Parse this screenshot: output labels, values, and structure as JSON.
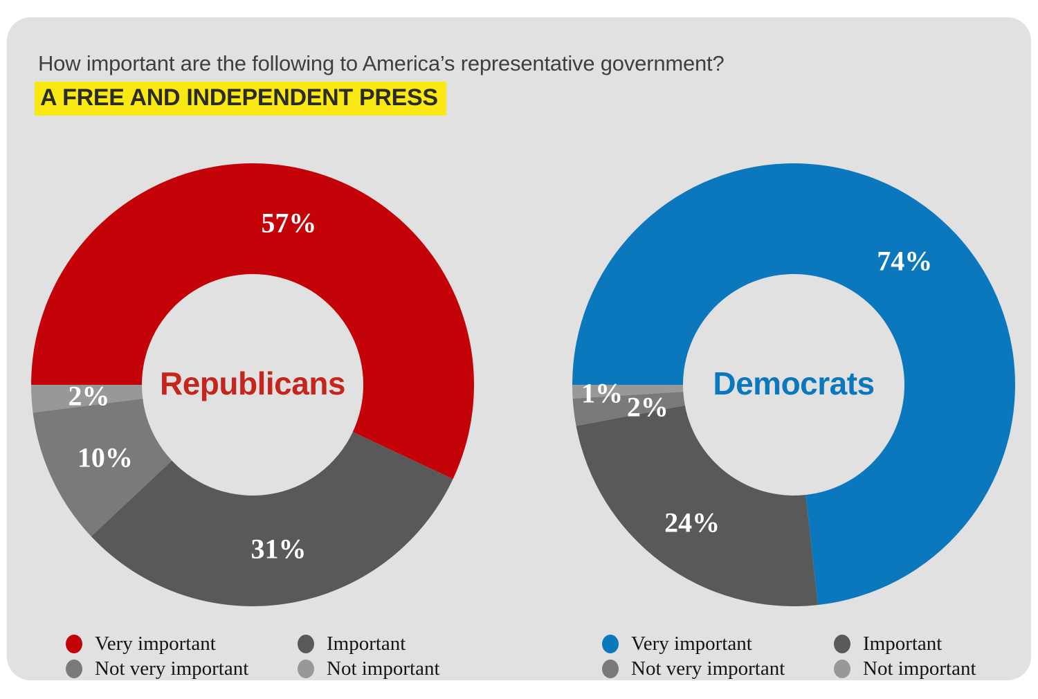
{
  "title": {
    "question": "How important are the following to America’s representative government?",
    "highlight": "A FREE AND INDEPENDENT PRESS"
  },
  "colors": {
    "card_background": "#e1e1e1",
    "highlight_background": "#f9e812",
    "republican_red": "#c40308",
    "republican_label_red": "#c3261c",
    "democrat_blue": "#0b78be",
    "important_gray": "#595959",
    "not_very_important_gray": "#7a7a7a",
    "not_important_gray": "#989898",
    "value_label_white": "#ffffff"
  },
  "chart_data": {
    "type": "pie",
    "subtype": "donut",
    "title": "How important are the following to America’s representative government? — A FREE AND INDEPENDENT PRESS",
    "categories": [
      "Very important",
      "Important",
      "Not very important",
      "Not important"
    ],
    "series": [
      {
        "name": "Republicans",
        "values": [
          57,
          31,
          10,
          2
        ]
      },
      {
        "name": "Democrats",
        "values": [
          74,
          24,
          2,
          1
        ]
      }
    ],
    "layout": {
      "start_angle_deg": 180,
      "direction": "clockwise",
      "donut_hole_ratio": 0.5,
      "legend_position": "bottom",
      "value_labels": "inside-ring, percent"
    },
    "charts": [
      {
        "group": "Republicans",
        "group_color": "#c3261c",
        "segments": [
          {
            "label": "Very important",
            "value": 57,
            "display": "57%",
            "color": "#c40308"
          },
          {
            "label": "Important",
            "value": 31,
            "display": "31%",
            "color": "#595959"
          },
          {
            "label": "Not very important",
            "value": 10,
            "display": "10%",
            "color": "#7a7a7a",
            "label_dx": 4,
            "label_dy": 3
          },
          {
            "label": "Not important",
            "value": 2,
            "display": "2%",
            "color": "#989898",
            "label_dx": 3,
            "label_dy": 1
          }
        ]
      },
      {
        "group": "Democrats",
        "group_color": "#0b78be",
        "segments": [
          {
            "label": "Very important",
            "value": 74,
            "display": "74%",
            "color": "#0b78be"
          },
          {
            "label": "Important",
            "value": 24,
            "display": "24%",
            "color": "#595959",
            "label_dx": -4,
            "label_dy": 6
          },
          {
            "label": "Not very important",
            "value": 2,
            "display": "2%",
            "color": "#7a7a7a",
            "label_dx": 27,
            "label_dy": 2
          },
          {
            "label": "Not important",
            "value": 1,
            "display": "1%",
            "color": "#989898",
            "label_dx": -37,
            "label_dy": 5
          }
        ]
      }
    ]
  }
}
